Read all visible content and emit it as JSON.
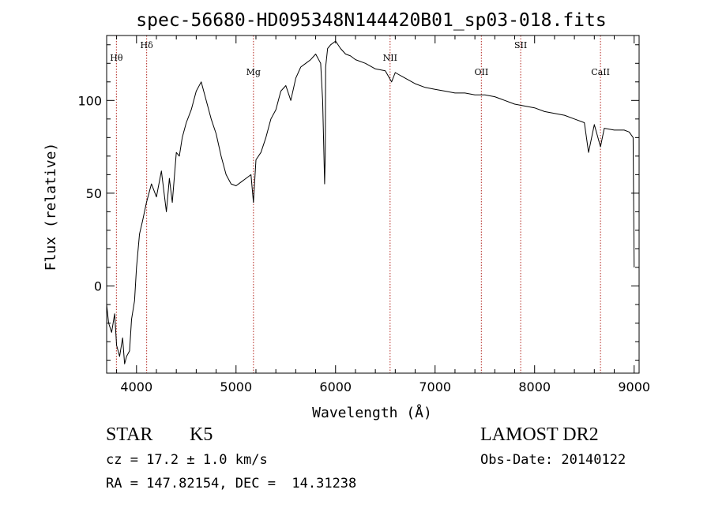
{
  "chart_data": {
    "type": "line",
    "title": "spec-56680-HD095348N144420B01_sp03-018.fits",
    "xlabel": "Wavelength (Å)",
    "ylabel": "Flux (relative)",
    "xlim": [
      3700,
      9050
    ],
    "ylim": [
      -47,
      135
    ],
    "x_ticks": [
      4000,
      5000,
      6000,
      7000,
      8000,
      9000
    ],
    "y_ticks": [
      0,
      50,
      100
    ],
    "series": [
      {
        "x": [
          3700,
          3720,
          3750,
          3780,
          3800,
          3830,
          3860,
          3880,
          3900,
          3930,
          3950,
          3980,
          4000,
          4030,
          4060,
          4100,
          4150,
          4200,
          4250,
          4300,
          4330,
          4360,
          4400,
          4430,
          4460,
          4500,
          4550,
          4600,
          4650,
          4700,
          4750,
          4800,
          4850,
          4900,
          4950,
          5000,
          5050,
          5100,
          5150,
          5175,
          5200,
          5250,
          5300,
          5350,
          5400,
          5450,
          5500,
          5550,
          5600,
          5650,
          5700,
          5750,
          5800,
          5850,
          5870,
          5890,
          5896,
          5900,
          5920,
          5950,
          6000,
          6050,
          6100,
          6150,
          6200,
          6300,
          6400,
          6500,
          6563,
          6600,
          6700,
          6800,
          6900,
          7000,
          7100,
          7200,
          7300,
          7400,
          7500,
          7600,
          7700,
          7800,
          7900,
          8000,
          8100,
          8200,
          8300,
          8400,
          8500,
          8542,
          8600,
          8662,
          8700,
          8800,
          8900,
          8950,
          8990,
          9000
        ],
        "y": [
          -10,
          -20,
          -25,
          -15,
          -32,
          -38,
          -28,
          -42,
          -38,
          -35,
          -18,
          -8,
          10,
          28,
          35,
          45,
          55,
          48,
          62,
          40,
          58,
          45,
          72,
          70,
          80,
          88,
          95,
          105,
          110,
          100,
          90,
          82,
          70,
          60,
          55,
          54,
          56,
          58,
          60,
          45,
          68,
          72,
          80,
          90,
          95,
          105,
          108,
          100,
          112,
          118,
          120,
          122,
          125,
          120,
          100,
          55,
          70,
          118,
          128,
          130,
          132,
          128,
          125,
          124,
          122,
          120,
          117,
          116,
          110,
          115,
          112,
          109,
          107,
          106,
          105,
          104,
          104,
          103,
          103,
          102,
          100,
          98,
          97,
          96,
          94,
          93,
          92,
          90,
          88,
          72,
          87,
          75,
          85,
          84,
          84,
          83,
          80,
          10
        ]
      }
    ],
    "line_markers": [
      {
        "label": "Hθ",
        "x": 3798,
        "label_level": "high"
      },
      {
        "label": "Hδ",
        "x": 4102,
        "label_level": "top"
      },
      {
        "label": "Mg",
        "x": 5175,
        "label_level": "low"
      },
      {
        "label": "NII",
        "x": 6548,
        "label_level": "high"
      },
      {
        "label": "OII",
        "x": 7465,
        "label_level": "low"
      },
      {
        "label": "SII",
        "x": 7860,
        "label_level": "top"
      },
      {
        "label": "CaII",
        "x": 8662,
        "label_level": "low"
      }
    ],
    "grid": false,
    "marker_color": "#b3251e"
  },
  "info": {
    "object_type": "STAR",
    "subclass": "K5",
    "redshift": "cz = 17.2 ± 1.0 km/s",
    "coords": "RA = 147.82154, DEC =  14.31238",
    "survey": "LAMOST DR2",
    "obs_date": "Obs-Date: 20140122"
  }
}
